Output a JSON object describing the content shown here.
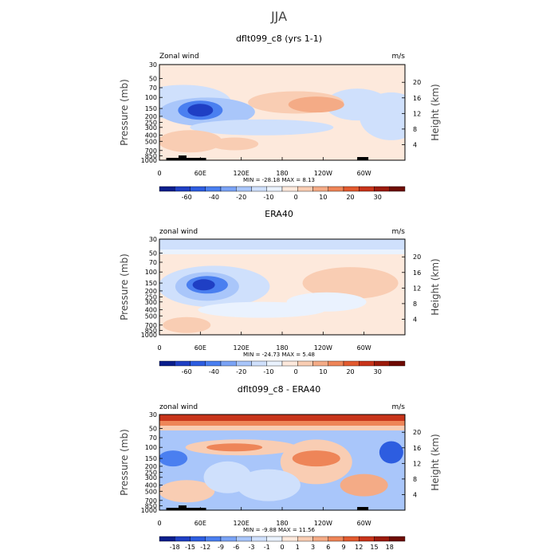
{
  "figure": {
    "title": "JJA"
  },
  "chart_data": [
    {
      "type": "heatmap",
      "title": "dflt099_c8 (yrs 1-1)",
      "left_label": "Zonal wind",
      "right_label": "m/s",
      "ylabel": "Pressure (mb)",
      "ylabel_right": "Height (km)",
      "x_ticks": [
        "0",
        "60E",
        "120E",
        "180",
        "120W",
        "60W"
      ],
      "pressure_ticks": [
        30,
        50,
        70,
        100,
        150,
        200,
        250,
        300,
        400,
        500,
        700,
        850,
        1000
      ],
      "height_ticks": [
        20,
        16,
        12,
        8,
        4
      ],
      "stats": "MIN = -28.18   MAX =   8.13",
      "min": -28.18,
      "max": 8.13,
      "colorbar_levels": [
        "-60",
        "-40",
        "-20",
        "-10",
        "0",
        "10",
        "20",
        "30"
      ],
      "colors": [
        "#0a1e8c",
        "#1f3fc4",
        "#2d5de0",
        "#4a7ff0",
        "#7aa3f5",
        "#a9c6fa",
        "#cfe0fc",
        "#eaf2fe",
        "#fde9dc",
        "#f9cdb3",
        "#f4ab86",
        "#ee8558",
        "#e25a2f",
        "#c8341a",
        "#9c1a0a",
        "#6e0a02"
      ],
      "features": [
        {
          "kind": "jet",
          "lon": 80,
          "p": 170,
          "w": 55,
          "h": 60,
          "sign": -1,
          "max": -28
        },
        {
          "kind": "westerly",
          "lon": 250,
          "p": 110,
          "w": 70,
          "h": 55,
          "sign": 1,
          "max": 8
        }
      ]
    },
    {
      "type": "heatmap",
      "title": "ERA40",
      "left_label": "zonal wind",
      "right_label": "m/s",
      "ylabel": "Pressure (mb)",
      "ylabel_right": "Height (km)",
      "x_ticks": [
        "0",
        "60E",
        "120E",
        "180",
        "120W",
        "60W"
      ],
      "pressure_ticks": [
        30,
        50,
        70,
        100,
        150,
        200,
        250,
        300,
        400,
        500,
        700,
        850,
        1000
      ],
      "height_ticks": [
        20,
        16,
        12,
        8,
        4
      ],
      "stats": "MIN = -24.73   MAX =   5.48",
      "min": -24.73,
      "max": 5.48,
      "colorbar_levels": [
        "-60",
        "-40",
        "-20",
        "-10",
        "0",
        "10",
        "20",
        "30"
      ],
      "colors": [
        "#0a1e8c",
        "#1f3fc4",
        "#2d5de0",
        "#4a7ff0",
        "#7aa3f5",
        "#a9c6fa",
        "#cfe0fc",
        "#eaf2fe",
        "#fde9dc",
        "#f9cdb3",
        "#f4ab86",
        "#ee8558",
        "#e25a2f",
        "#c8341a",
        "#9c1a0a",
        "#6e0a02"
      ]
    },
    {
      "type": "heatmap",
      "title": "dflt099_c8 - ERA40",
      "left_label": "zonal wind",
      "right_label": "m/s",
      "ylabel": "Pressure (mb)",
      "ylabel_right": "Height (km)",
      "x_ticks": [
        "0",
        "60E",
        "120E",
        "180",
        "120W",
        "60W"
      ],
      "pressure_ticks": [
        30,
        50,
        70,
        100,
        150,
        200,
        250,
        300,
        400,
        500,
        700,
        850,
        1000
      ],
      "height_ticks": [
        20,
        16,
        12,
        8,
        4
      ],
      "stats": "MIN =  -9.88   MAX =  11.56",
      "min": -9.88,
      "max": 11.56,
      "colorbar_levels": [
        "-18",
        "-15",
        "-12",
        "-9",
        "-6",
        "-3",
        "-1",
        "0",
        "1",
        "3",
        "6",
        "9",
        "12",
        "15",
        "18"
      ],
      "colors": [
        "#0a1e8c",
        "#1f3fc4",
        "#2d5de0",
        "#4a7ff0",
        "#7aa3f5",
        "#a9c6fa",
        "#cfe0fc",
        "#eaf2fe",
        "#fde9dc",
        "#f9cdb3",
        "#f4ab86",
        "#ee8558",
        "#e25a2f",
        "#c8341a",
        "#9c1a0a",
        "#6e0a02"
      ]
    }
  ]
}
